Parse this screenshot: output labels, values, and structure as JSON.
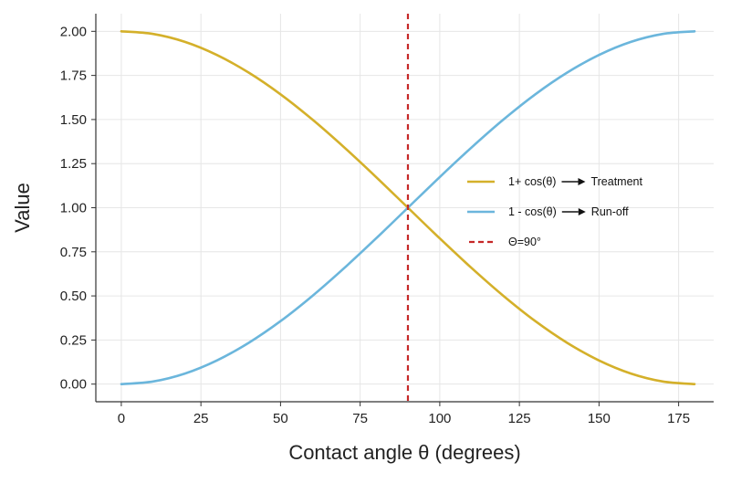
{
  "chart_data": {
    "type": "line",
    "title": "",
    "xlabel": "Contact angle θ (degrees)",
    "ylabel": "Value",
    "xlim": [
      -8,
      186
    ],
    "ylim": [
      -0.1,
      2.1
    ],
    "xticks": [
      0,
      25,
      50,
      75,
      100,
      125,
      150,
      175
    ],
    "yticks": [
      0.0,
      0.25,
      0.5,
      0.75,
      1.0,
      1.25,
      1.5,
      1.75,
      2.0
    ],
    "xtick_labels": [
      "0",
      "25",
      "50",
      "75",
      "100",
      "125",
      "150",
      "175"
    ],
    "ytick_labels": [
      "0.00",
      "0.25",
      "0.50",
      "0.75",
      "1.00",
      "1.25",
      "1.50",
      "1.75",
      "2.00"
    ],
    "grid": true,
    "legend_position": "center-right",
    "x": [
      0,
      10,
      20,
      30,
      40,
      50,
      60,
      70,
      80,
      90,
      100,
      110,
      120,
      130,
      140,
      150,
      160,
      170,
      180
    ],
    "series": [
      {
        "key": "one_plus_cos",
        "name": "1+ cos(θ)",
        "legend_suffix": "Treatment",
        "color": "#d4b02a",
        "values": [
          2.0,
          1.985,
          1.94,
          1.866,
          1.766,
          1.643,
          1.5,
          1.342,
          1.174,
          1.0,
          0.826,
          0.658,
          0.5,
          0.357,
          0.234,
          0.134,
          0.06,
          0.015,
          0.0
        ]
      },
      {
        "key": "one_minus_cos",
        "name": "1 - cos(θ)",
        "legend_suffix": "Run-off",
        "color": "#6bb6dc",
        "values": [
          0.0,
          0.015,
          0.06,
          0.134,
          0.234,
          0.357,
          0.5,
          0.658,
          0.826,
          1.0,
          1.174,
          1.342,
          1.5,
          1.643,
          1.766,
          1.866,
          1.94,
          1.985,
          2.0
        ]
      }
    ],
    "vline": {
      "x": 90,
      "label": "Θ=90°",
      "color": "#c62828",
      "style": "dashed"
    }
  }
}
